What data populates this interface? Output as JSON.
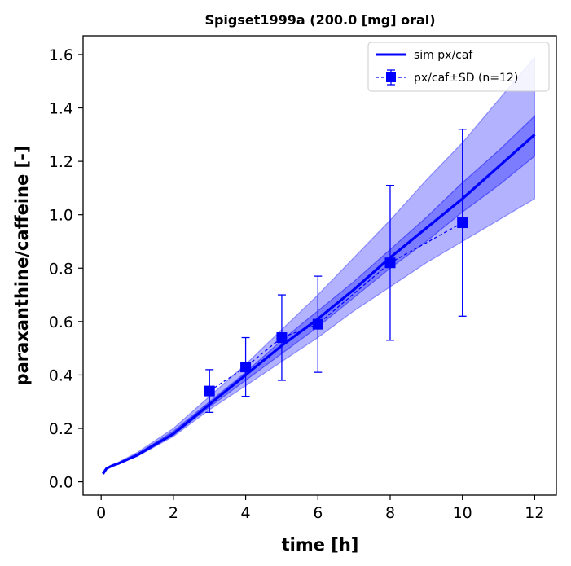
{
  "chart_data": {
    "type": "line",
    "title": "Spigset1999a (200.0 [mg] oral)",
    "xlabel": "time [h]",
    "ylabel": "paraxanthine/caffeine [-]",
    "xlim": [
      -0.5,
      12.6
    ],
    "ylim": [
      -0.05,
      1.67
    ],
    "xticks": [
      0,
      2,
      4,
      6,
      8,
      10,
      12
    ],
    "yticks": [
      0.0,
      0.2,
      0.4,
      0.6,
      0.8,
      1.0,
      1.2,
      1.4,
      1.6
    ],
    "xtick_labels": [
      "0",
      "2",
      "4",
      "6",
      "8",
      "10",
      "12"
    ],
    "ytick_labels": [
      "0.0",
      "0.2",
      "0.4",
      "0.6",
      "0.8",
      "1.0",
      "1.2",
      "1.4",
      "1.6"
    ],
    "grid": false,
    "legend_position": "top-right",
    "series": [
      {
        "name": "sim px/caf",
        "kind": "line",
        "color": "#0000ff",
        "x": [
          0.05,
          0.15,
          0.3,
          0.5,
          1,
          2,
          3,
          4,
          5,
          6,
          7,
          8,
          9,
          10,
          11,
          12
        ],
        "y": [
          0.03,
          0.05,
          0.06,
          0.07,
          0.1,
          0.18,
          0.29,
          0.4,
          0.51,
          0.61,
          0.72,
          0.84,
          0.95,
          1.06,
          1.18,
          1.3
        ],
        "band_outer_upper": [
          0.03,
          0.05,
          0.06,
          0.075,
          0.11,
          0.2,
          0.32,
          0.44,
          0.57,
          0.7,
          0.84,
          0.98,
          1.13,
          1.27,
          1.43,
          1.59
        ],
        "band_outer_lower": [
          0.03,
          0.05,
          0.06,
          0.07,
          0.095,
          0.17,
          0.27,
          0.36,
          0.45,
          0.54,
          0.64,
          0.73,
          0.82,
          0.9,
          0.98,
          1.06
        ],
        "band_inner_upper": [
          0.03,
          0.05,
          0.06,
          0.072,
          0.105,
          0.19,
          0.3,
          0.41,
          0.53,
          0.64,
          0.75,
          0.87,
          0.99,
          1.12,
          1.24,
          1.37
        ],
        "band_inner_lower": [
          0.03,
          0.05,
          0.06,
          0.07,
          0.097,
          0.175,
          0.28,
          0.38,
          0.48,
          0.58,
          0.69,
          0.8,
          0.9,
          1.01,
          1.11,
          1.22
        ],
        "band_color": "#0000ff"
      },
      {
        "name": "px/caf±SD (n=12)",
        "kind": "errorbar",
        "color": "#0000ff",
        "x": [
          3,
          4,
          5,
          6,
          8,
          10
        ],
        "y": [
          0.34,
          0.43,
          0.54,
          0.59,
          0.82,
          0.97
        ],
        "yerr_low": [
          0.26,
          0.32,
          0.38,
          0.41,
          0.53,
          0.62
        ],
        "yerr_high": [
          0.42,
          0.54,
          0.7,
          0.77,
          1.11,
          1.32
        ]
      }
    ]
  }
}
